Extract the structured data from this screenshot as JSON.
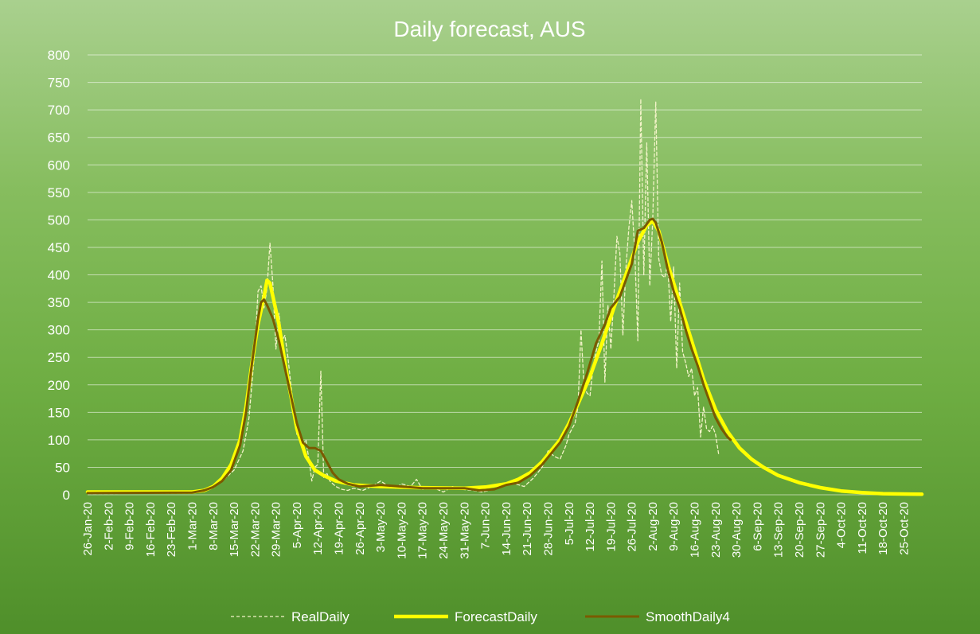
{
  "chart_data": {
    "type": "line",
    "title": "Daily forecast, AUS",
    "xlabel": "",
    "ylabel": "",
    "ylim": [
      0,
      800
    ],
    "ytick_step": 50,
    "grid": true,
    "legend_position": "bottom",
    "x_start": "26-Jan-20",
    "x_end": "31-Oct-20",
    "x_ticks": [
      "26-Jan-20",
      "2-Feb-20",
      "9-Feb-20",
      "16-Feb-20",
      "23-Feb-20",
      "1-Mar-20",
      "8-Mar-20",
      "15-Mar-20",
      "22-Mar-20",
      "29-Mar-20",
      "5-Apr-20",
      "12-Apr-20",
      "19-Apr-20",
      "26-Apr-20",
      "3-May-20",
      "10-May-20",
      "17-May-20",
      "24-May-20",
      "31-May-20",
      "7-Jun-20",
      "14-Jun-20",
      "21-Jun-20",
      "28-Jun-20",
      "5-Jul-20",
      "12-Jul-20",
      "19-Jul-20",
      "26-Jul-20",
      "2-Aug-20",
      "9-Aug-20",
      "16-Aug-20",
      "23-Aug-20",
      "30-Aug-20",
      "6-Sep-20",
      "13-Sep-20",
      "20-Sep-20",
      "27-Sep-20",
      "4-Oct-20",
      "11-Oct-20",
      "18-Oct-20",
      "25-Oct-20"
    ],
    "series": [
      {
        "name": "RealDaily",
        "color": "#f3f3c8",
        "style": "dashed",
        "points": [
          [
            "26-Jan-20",
            2
          ],
          [
            "1-Mar-20",
            3
          ],
          [
            "8-Mar-20",
            15
          ],
          [
            "12-Mar-20",
            30
          ],
          [
            "15-Mar-20",
            45
          ],
          [
            "18-Mar-20",
            80
          ],
          [
            "20-Mar-20",
            140
          ],
          [
            "22-Mar-20",
            270
          ],
          [
            "23-Mar-20",
            370
          ],
          [
            "24-Mar-20",
            380
          ],
          [
            "25-Mar-20",
            340
          ],
          [
            "26-Mar-20",
            375
          ],
          [
            "27-Mar-20",
            458
          ],
          [
            "28-Mar-20",
            380
          ],
          [
            "29-Mar-20",
            265
          ],
          [
            "30-Mar-20",
            330
          ],
          [
            "31-Mar-20",
            280
          ],
          [
            "1-Apr-20",
            290
          ],
          [
            "2-Apr-20",
            250
          ],
          [
            "3-Apr-20",
            200
          ],
          [
            "4-Apr-20",
            150
          ],
          [
            "5-Apr-20",
            110
          ],
          [
            "6-Apr-20",
            105
          ],
          [
            "7-Apr-20",
            90
          ],
          [
            "8-Apr-20",
            100
          ],
          [
            "9-Apr-20",
            65
          ],
          [
            "10-Apr-20",
            25
          ],
          [
            "11-Apr-20",
            50
          ],
          [
            "12-Apr-20",
            55
          ],
          [
            "13-Apr-20",
            225
          ],
          [
            "14-Apr-20",
            30
          ],
          [
            "15-Apr-20",
            40
          ],
          [
            "16-Apr-20",
            25
          ],
          [
            "18-Apr-20",
            15
          ],
          [
            "20-Apr-20",
            10
          ],
          [
            "22-Apr-20",
            8
          ],
          [
            "24-Apr-20",
            12
          ],
          [
            "27-Apr-20",
            8
          ],
          [
            "30-Apr-20",
            15
          ],
          [
            "3-May-20",
            25
          ],
          [
            "5-May-20",
            18
          ],
          [
            "8-May-20",
            12
          ],
          [
            "10-May-20",
            20
          ],
          [
            "13-May-20",
            15
          ],
          [
            "15-May-20",
            28
          ],
          [
            "17-May-20",
            10
          ],
          [
            "21-May-20",
            12
          ],
          [
            "24-May-20",
            5
          ],
          [
            "27-May-20",
            15
          ],
          [
            "30-May-20",
            10
          ],
          [
            "3-Jun-20",
            8
          ],
          [
            "6-Jun-20",
            5
          ],
          [
            "10-Jun-20",
            10
          ],
          [
            "14-Jun-20",
            18
          ],
          [
            "17-Jun-20",
            20
          ],
          [
            "20-Jun-20",
            15
          ],
          [
            "23-Jun-20",
            30
          ],
          [
            "26-Jun-20",
            50
          ],
          [
            "28-Jun-20",
            80
          ],
          [
            "30-Jun-20",
            70
          ],
          [
            "2-Jul-20",
            65
          ],
          [
            "4-Jul-20",
            90
          ],
          [
            "5-Jul-20",
            110
          ],
          [
            "7-Jul-20",
            130
          ],
          [
            "8-Jul-20",
            160
          ],
          [
            "9-Jul-20",
            300
          ],
          [
            "10-Jul-20",
            200
          ],
          [
            "11-Jul-20",
            185
          ],
          [
            "12-Jul-20",
            180
          ],
          [
            "13-Jul-20",
            230
          ],
          [
            "14-Jul-20",
            260
          ],
          [
            "15-Jul-20",
            280
          ],
          [
            "16-Jul-20",
            425
          ],
          [
            "17-Jul-20",
            205
          ],
          [
            "18-Jul-20",
            345
          ],
          [
            "19-Jul-20",
            265
          ],
          [
            "20-Jul-20",
            360
          ],
          [
            "21-Jul-20",
            470
          ],
          [
            "22-Jul-20",
            440
          ],
          [
            "23-Jul-20",
            290
          ],
          [
            "24-Jul-20",
            410
          ],
          [
            "25-Jul-20",
            485
          ],
          [
            "26-Jul-20",
            535
          ],
          [
            "27-Jul-20",
            440
          ],
          [
            "28-Jul-20",
            280
          ],
          [
            "29-Jul-20",
            720
          ],
          [
            "30-Jul-20",
            400
          ],
          [
            "31-Jul-20",
            640
          ],
          [
            "1-Aug-20",
            380
          ],
          [
            "2-Aug-20",
            500
          ],
          [
            "3-Aug-20",
            715
          ],
          [
            "4-Aug-20",
            430
          ],
          [
            "5-Aug-20",
            400
          ],
          [
            "6-Aug-20",
            395
          ],
          [
            "7-Aug-20",
            420
          ],
          [
            "8-Aug-20",
            315
          ],
          [
            "9-Aug-20",
            415
          ],
          [
            "10-Aug-20",
            230
          ],
          [
            "11-Aug-20",
            385
          ],
          [
            "12-Aug-20",
            260
          ],
          [
            "13-Aug-20",
            240
          ],
          [
            "14-Aug-20",
            215
          ],
          [
            "15-Aug-20",
            230
          ],
          [
            "16-Aug-20",
            180
          ],
          [
            "17-Aug-20",
            195
          ],
          [
            "18-Aug-20",
            105
          ],
          [
            "19-Aug-20",
            160
          ],
          [
            "20-Aug-20",
            120
          ],
          [
            "21-Aug-20",
            115
          ],
          [
            "22-Aug-20",
            125
          ],
          [
            "23-Aug-20",
            110
          ],
          [
            "24-Aug-20",
            75
          ]
        ]
      },
      {
        "name": "ForecastDaily",
        "color": "#ffff00",
        "style": "solid",
        "points": [
          [
            "26-Jan-20",
            5
          ],
          [
            "1-Mar-20",
            5
          ],
          [
            "5-Mar-20",
            8
          ],
          [
            "8-Mar-20",
            15
          ],
          [
            "11-Mar-20",
            30
          ],
          [
            "14-Mar-20",
            55
          ],
          [
            "17-Mar-20",
            100
          ],
          [
            "19-Mar-20",
            160
          ],
          [
            "21-Mar-20",
            240
          ],
          [
            "23-Mar-20",
            310
          ],
          [
            "25-Mar-20",
            360
          ],
          [
            "26-Mar-20",
            390
          ],
          [
            "27-Mar-20",
            385
          ],
          [
            "28-Mar-20",
            360
          ],
          [
            "30-Mar-20",
            310
          ],
          [
            "1-Apr-20",
            240
          ],
          [
            "3-Apr-20",
            180
          ],
          [
            "5-Apr-20",
            120
          ],
          [
            "8-Apr-20",
            70
          ],
          [
            "11-Apr-20",
            45
          ],
          [
            "14-Apr-20",
            35
          ],
          [
            "18-Apr-20",
            25
          ],
          [
            "24-Apr-20",
            18
          ],
          [
            "3-May-20",
            15
          ],
          [
            "15-May-20",
            13
          ],
          [
            "31-May-20",
            12
          ],
          [
            "7-Jun-20",
            14
          ],
          [
            "14-Jun-20",
            20
          ],
          [
            "18-Jun-20",
            28
          ],
          [
            "22-Jun-20",
            40
          ],
          [
            "26-Jun-20",
            60
          ],
          [
            "29-Jun-20",
            80
          ],
          [
            "2-Jul-20",
            100
          ],
          [
            "5-Jul-20",
            130
          ],
          [
            "8-Jul-20",
            165
          ],
          [
            "12-Jul-20",
            215
          ],
          [
            "16-Jul-20",
            275
          ],
          [
            "20-Jul-20",
            340
          ],
          [
            "24-Jul-20",
            400
          ],
          [
            "28-Jul-20",
            460
          ],
          [
            "31-Jul-20",
            490
          ],
          [
            "2-Aug-20",
            498
          ],
          [
            "4-Aug-20",
            480
          ],
          [
            "7-Aug-20",
            420
          ],
          [
            "11-Aug-20",
            350
          ],
          [
            "15-Aug-20",
            280
          ],
          [
            "19-Aug-20",
            210
          ],
          [
            "23-Aug-20",
            155
          ],
          [
            "27-Aug-20",
            115
          ],
          [
            "31-Aug-20",
            85
          ],
          [
            "4-Sep-20",
            65
          ],
          [
            "8-Sep-20",
            50
          ],
          [
            "13-Sep-20",
            35
          ],
          [
            "20-Sep-20",
            22
          ],
          [
            "27-Sep-20",
            13
          ],
          [
            "4-Oct-20",
            7
          ],
          [
            "11-Oct-20",
            4
          ],
          [
            "18-Oct-20",
            2
          ],
          [
            "31-Oct-20",
            1
          ]
        ]
      },
      {
        "name": "SmoothDaily4",
        "color": "#7a5a00",
        "style": "solid",
        "points": [
          [
            "26-Jan-20",
            3
          ],
          [
            "1-Mar-20",
            4
          ],
          [
            "5-Mar-20",
            8
          ],
          [
            "8-Mar-20",
            14
          ],
          [
            "11-Mar-20",
            25
          ],
          [
            "14-Mar-20",
            45
          ],
          [
            "17-Mar-20",
            90
          ],
          [
            "19-Mar-20",
            150
          ],
          [
            "21-Mar-20",
            240
          ],
          [
            "23-Mar-20",
            320
          ],
          [
            "24-Mar-20",
            350
          ],
          [
            "25-Mar-20",
            355
          ],
          [
            "26-Mar-20",
            345
          ],
          [
            "28-Mar-20",
            320
          ],
          [
            "30-Mar-20",
            280
          ],
          [
            "1-Apr-20",
            230
          ],
          [
            "3-Apr-20",
            180
          ],
          [
            "5-Apr-20",
            130
          ],
          [
            "7-Apr-20",
            95
          ],
          [
            "9-Apr-20",
            85
          ],
          [
            "11-Apr-20",
            85
          ],
          [
            "13-Apr-20",
            80
          ],
          [
            "15-Apr-20",
            60
          ],
          [
            "17-Apr-20",
            40
          ],
          [
            "19-Apr-20",
            28
          ],
          [
            "22-Apr-20",
            20
          ],
          [
            "26-Apr-20",
            15
          ],
          [
            "3-May-20",
            18
          ],
          [
            "10-May-20",
            15
          ],
          [
            "17-May-20",
            12
          ],
          [
            "24-May-20",
            12
          ],
          [
            "31-May-20",
            12
          ],
          [
            "5-Jun-20",
            8
          ],
          [
            "10-Jun-20",
            10
          ],
          [
            "14-Jun-20",
            18
          ],
          [
            "18-Jun-20",
            22
          ],
          [
            "22-Jun-20",
            35
          ],
          [
            "26-Jun-20",
            55
          ],
          [
            "29-Jun-20",
            75
          ],
          [
            "2-Jul-20",
            95
          ],
          [
            "5-Jul-20",
            125
          ],
          [
            "8-Jul-20",
            170
          ],
          [
            "11-Jul-20",
            220
          ],
          [
            "14-Jul-20",
            275
          ],
          [
            "17-Jul-20",
            310
          ],
          [
            "19-Jul-20",
            340
          ],
          [
            "22-Jul-20",
            360
          ],
          [
            "24-Jul-20",
            390
          ],
          [
            "26-Jul-20",
            420
          ],
          [
            "28-Jul-20",
            480
          ],
          [
            "30-Jul-20",
            485
          ],
          [
            "1-Aug-20",
            500
          ],
          [
            "2-Aug-20",
            502
          ],
          [
            "3-Aug-20",
            495
          ],
          [
            "5-Aug-20",
            460
          ],
          [
            "7-Aug-20",
            410
          ],
          [
            "9-Aug-20",
            370
          ],
          [
            "11-Aug-20",
            340
          ],
          [
            "13-Aug-20",
            300
          ],
          [
            "15-Aug-20",
            265
          ],
          [
            "17-Aug-20",
            235
          ],
          [
            "19-Aug-20",
            200
          ],
          [
            "21-Aug-20",
            170
          ],
          [
            "23-Aug-20",
            140
          ],
          [
            "25-Aug-20",
            120
          ],
          [
            "27-Aug-20",
            105
          ],
          [
            "28-Aug-20",
            100
          ]
        ]
      }
    ]
  }
}
